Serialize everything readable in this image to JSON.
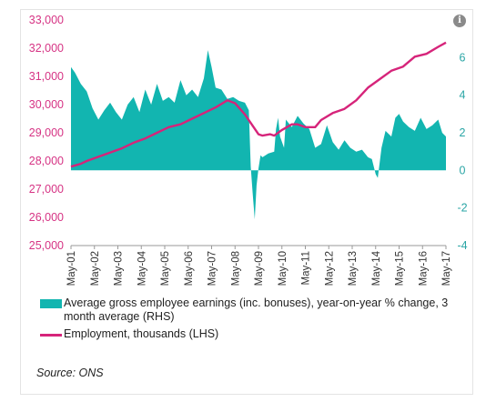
{
  "chart_data": {
    "type": "line",
    "x_tick_labels": [
      "May-01",
      "May-02",
      "May-03",
      "May-04",
      "May-05",
      "May-06",
      "May-07",
      "May-08",
      "May-09",
      "May-10",
      "May-11",
      "May-12",
      "May-13",
      "May-14",
      "May-15",
      "May-16",
      "May-17"
    ],
    "y_left": {
      "ylim": [
        25000,
        33000
      ],
      "ticks": [
        "25,000",
        "26,000",
        "27,000",
        "28,000",
        "29,000",
        "30,000",
        "31,000",
        "32,000",
        "33,000"
      ],
      "color": "#d63384"
    },
    "y_right": {
      "ylim": [
        -4,
        8
      ],
      "ticks": [
        "-4",
        "-2",
        "0",
        "2",
        "4",
        "6"
      ],
      "color": "#2aa5a5"
    },
    "series": [
      {
        "name": "Average gross employee earnings (inc. bonuses), year-on-year % change, 3 month average (RHS)",
        "type": "area",
        "axis": "right",
        "color": "#12b5b0",
        "x": [
          2001.33,
          2001.5,
          2001.75,
          2002.0,
          2002.25,
          2002.5,
          2002.75,
          2003.0,
          2003.25,
          2003.5,
          2003.75,
          2004.0,
          2004.25,
          2004.5,
          2004.75,
          2005.0,
          2005.25,
          2005.5,
          2005.75,
          2006.0,
          2006.25,
          2006.5,
          2006.75,
          2007.0,
          2007.17,
          2007.33,
          2007.5,
          2007.75,
          2008.0,
          2008.25,
          2008.5,
          2008.75,
          2008.92,
          2009.0,
          2009.08,
          2009.17,
          2009.25,
          2009.33,
          2009.42,
          2009.5,
          2009.75,
          2010.0,
          2010.08,
          2010.17,
          2010.25,
          2010.42,
          2010.5,
          2010.75,
          2011.0,
          2011.25,
          2011.5,
          2011.75,
          2012.0,
          2012.25,
          2012.5,
          2012.75,
          2013.0,
          2013.25,
          2013.5,
          2013.75,
          2014.0,
          2014.17,
          2014.33,
          2014.42,
          2014.58,
          2014.75,
          2015.0,
          2015.17,
          2015.33,
          2015.5,
          2015.75,
          2016.0,
          2016.25,
          2016.5,
          2016.75,
          2017.0,
          2017.17,
          2017.33
        ],
        "values": [
          5.5,
          5.2,
          4.6,
          4.2,
          3.3,
          2.7,
          3.2,
          3.6,
          3.1,
          2.7,
          3.5,
          3.9,
          3.1,
          4.3,
          3.5,
          4.6,
          3.7,
          3.9,
          3.6,
          4.8,
          4.0,
          4.3,
          3.9,
          4.9,
          6.4,
          5.5,
          4.4,
          4.3,
          3.8,
          3.9,
          3.7,
          3.6,
          3.2,
          0.2,
          -1.2,
          -2.6,
          -0.8,
          0.1,
          0.8,
          0.7,
          0.9,
          1.0,
          2.2,
          2.8,
          1.8,
          1.2,
          2.7,
          2.3,
          2.9,
          2.5,
          2.2,
          1.2,
          1.4,
          2.4,
          1.5,
          1.1,
          1.6,
          1.2,
          1.0,
          1.1,
          0.7,
          0.6,
          -0.2,
          -0.4,
          1.2,
          2.1,
          1.8,
          2.8,
          3.0,
          2.6,
          2.3,
          2.1,
          2.8,
          2.2,
          2.4,
          2.7,
          2.0,
          1.8
        ]
      },
      {
        "name": "Employment, thousands (LHS)",
        "type": "line",
        "axis": "left",
        "color": "#d6247a",
        "x": [
          2001.33,
          2001.75,
          2002.0,
          2002.5,
          2003.0,
          2003.5,
          2004.0,
          2004.5,
          2005.0,
          2005.5,
          2006.0,
          2006.5,
          2007.0,
          2007.5,
          2008.0,
          2008.33,
          2008.75,
          2009.0,
          2009.33,
          2009.5,
          2009.83,
          2010.0,
          2010.33,
          2010.75,
          2011.0,
          2011.33,
          2011.75,
          2012.0,
          2012.5,
          2013.0,
          2013.5,
          2014.0,
          2014.5,
          2015.0,
          2015.5,
          2016.0,
          2016.5,
          2017.0,
          2017.33
        ],
        "values": [
          27800,
          27900,
          28000,
          28150,
          28300,
          28450,
          28650,
          28800,
          29000,
          29200,
          29300,
          29500,
          29700,
          29900,
          30150,
          30050,
          29650,
          29350,
          28950,
          28900,
          28950,
          28900,
          29100,
          29300,
          29300,
          29200,
          29200,
          29450,
          29700,
          29850,
          30150,
          30600,
          30900,
          31200,
          31350,
          31700,
          31800,
          32050,
          32200
        ]
      }
    ],
    "legend_position": "bottom",
    "grid": false
  },
  "legend": [
    "Average gross employee earnings (inc. bonuses), year-on-year % change, 3 month average (RHS)",
    "Employment, thousands (LHS)"
  ],
  "source": "Source: ONS",
  "info_icon": "i"
}
